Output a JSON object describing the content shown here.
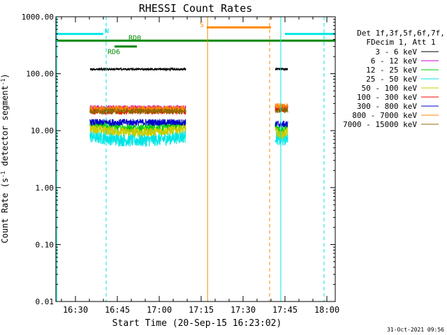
{
  "chart_data": {
    "type": "line",
    "title": "RHESSI Count Rates",
    "xlabel": "Start Time (20-Sep-15 16:23:02)",
    "ylabel_parts": [
      "Count Rate (s",
      "-1",
      " detector segment",
      "-1",
      ")"
    ],
    "y_scale": "log",
    "ylim": [
      0.01,
      1000
    ],
    "y_ticks": [
      {
        "value": 0.01,
        "label": "0.01"
      },
      {
        "value": 0.1,
        "label": "0.10"
      },
      {
        "value": 1,
        "label": "1.00"
      },
      {
        "value": 10,
        "label": "10.00"
      },
      {
        "value": 100,
        "label": "100.00"
      },
      {
        "value": 1000,
        "label": "1000.00"
      }
    ],
    "x_range_min": [
      983,
      1083
    ],
    "x_ticks": [
      {
        "value": 990,
        "label": "16:30"
      },
      {
        "value": 1005,
        "label": "16:45"
      },
      {
        "value": 1020,
        "label": "17:00"
      },
      {
        "value": 1035,
        "label": "17:15"
      },
      {
        "value": 1050,
        "label": "17:30"
      },
      {
        "value": 1065,
        "label": "17:45"
      },
      {
        "value": 1080,
        "label": "18:00"
      }
    ],
    "legend_header": [
      "Det 1f,3f,5f,6f,7f,",
      "FDecim 1, Att 1"
    ],
    "legend_placement": "right",
    "series": [
      {
        "name": "3 - 6 keV",
        "color": "#000000",
        "level1": 120,
        "level2": 120,
        "noise": 0.02
      },
      {
        "name": "6 - 12 keV",
        "color": "#cc00cc",
        "level1": 25,
        "level2": 25,
        "noise": 0.05
      },
      {
        "name": "12 - 25 keV",
        "color": "#00cc00",
        "level1": 13,
        "level2": 12,
        "noise": 0.08
      },
      {
        "name": "25 - 50 keV",
        "color": "#00e5e5",
        "level1": 8,
        "level2": 8,
        "noise": 0.12
      },
      {
        "name": "50 - 100 keV",
        "color": "#cccc00",
        "level1": 11,
        "level2": 10,
        "noise": 0.08
      },
      {
        "name": "100 - 300 keV",
        "color": "#ff0000",
        "level1": 22,
        "level2": 24,
        "noise": 0.06
      },
      {
        "name": "300 - 800 keV",
        "color": "#0000cc",
        "level1": 14,
        "level2": 13,
        "noise": 0.06
      },
      {
        "name": "800 - 7000 keV",
        "color": "#ff8800",
        "level1": 24,
        "level2": 27,
        "noise": 0.06
      },
      {
        "name": "7000 - 15000 keV",
        "color": "#8b6a00",
        "level1": 22,
        "level2": 23,
        "noise": 0.05
      }
    ],
    "segments": [
      {
        "start": 995.2,
        "end": 1029.5
      },
      {
        "start": 1061.5,
        "end": 1066.0
      }
    ],
    "flags": [
      {
        "label": "N",
        "color": "#00e5e5",
        "y": 500,
        "ranges": [
          [
            983,
            1000
          ],
          [
            1065,
            1083
          ]
        ]
      },
      {
        "label": "S",
        "color": "#ff8800",
        "y": 650,
        "ranges": [
          [
            1037,
            1060
          ]
        ]
      },
      {
        "label": "RD0",
        "color": "#008800",
        "y": 380,
        "ranges": [
          [
            983,
            1083
          ]
        ]
      },
      {
        "label": "RD6",
        "color": "#008800",
        "y": 300,
        "ranges": [
          [
            1004,
            1012
          ]
        ]
      }
    ],
    "vlines": [
      {
        "x": 983.3,
        "color": "#00e5e5",
        "style": "solid"
      },
      {
        "x": 1001,
        "color": "#00e5e5",
        "style": "dashed"
      },
      {
        "x": 1037.3,
        "color": "#ff8800",
        "style": "solid"
      },
      {
        "x": 1059.5,
        "color": "#ff8800",
        "style": "dashed"
      },
      {
        "x": 1063.5,
        "color": "#00e5e5",
        "style": "solid"
      },
      {
        "x": 1079,
        "color": "#00e5e5",
        "style": "dashed"
      }
    ]
  },
  "footer_timestamp": "31-Oct-2021 09:56"
}
